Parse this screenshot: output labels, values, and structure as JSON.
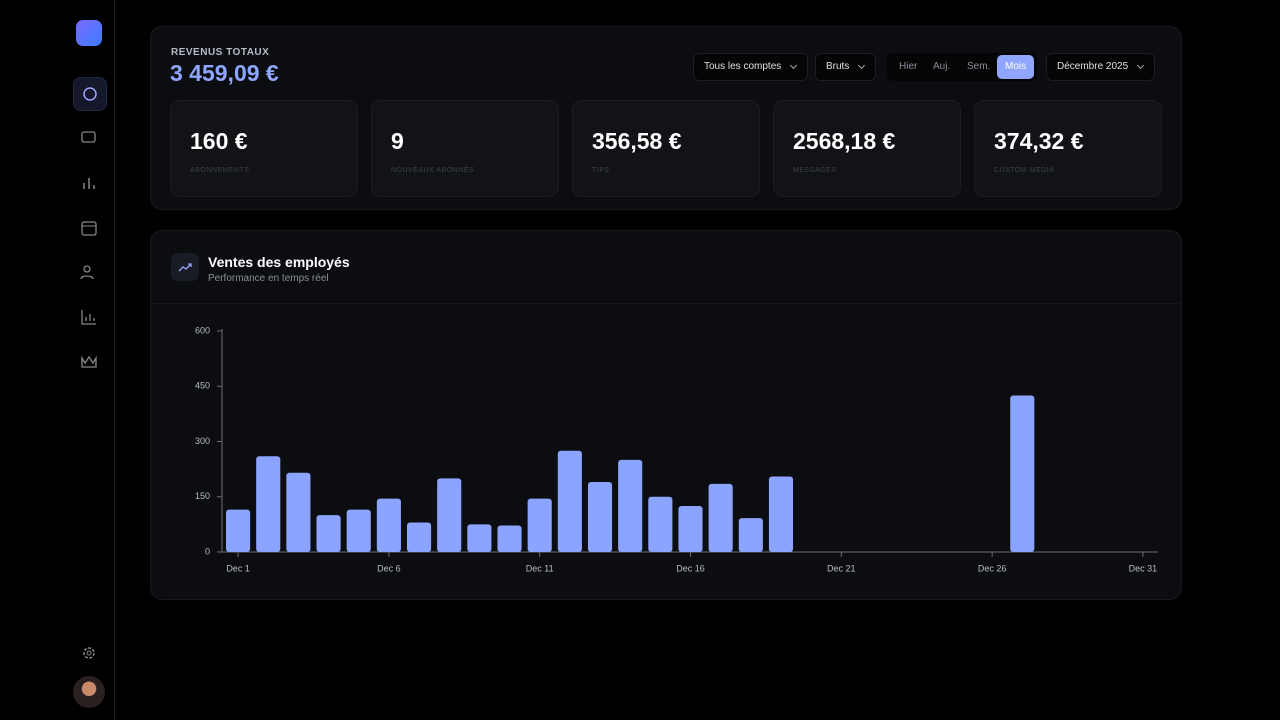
{
  "header": {
    "title": "REVENUS TOTAUX",
    "amount": "3 459,09 €",
    "filters": {
      "accounts": "Tous les comptes",
      "mode": "Bruts",
      "periods": [
        "Hier",
        "Auj.",
        "Sem.",
        "Mois"
      ],
      "active_period": "Mois",
      "month": "Décembre 2025"
    }
  },
  "stats": [
    {
      "value": "160 €",
      "label": "ABONNEMENTS"
    },
    {
      "value": "9",
      "label": "NOUVEAUX ABONNÉS"
    },
    {
      "value": "356,58 €",
      "label": "TIPS"
    },
    {
      "value": "2568,18 €",
      "label": "MESSAGES"
    },
    {
      "value": "374,32 €",
      "label": "CUSTOM MEDIA"
    }
  ],
  "section": {
    "title": "Ventes des employés",
    "subtitle": "Performance en temps réel"
  },
  "chart_data": {
    "type": "bar",
    "categories": [
      "Dec 1",
      null,
      null,
      null,
      null,
      "Dec 6",
      null,
      null,
      null,
      null,
      "Dec 11",
      null,
      null,
      null,
      null,
      "Dec 16",
      null,
      null,
      null,
      null,
      "Dec 21",
      null,
      null,
      null,
      null,
      "Dec 26",
      null,
      null,
      null,
      null,
      "Dec 31"
    ],
    "values": [
      115,
      260,
      215,
      100,
      115,
      145,
      80,
      200,
      75,
      72,
      145,
      275,
      190,
      250,
      150,
      125,
      185,
      92,
      205,
      0,
      0,
      0,
      0,
      0,
      0,
      0,
      425,
      0,
      0,
      0,
      0
    ],
    "color": "#8aa4ff",
    "ylim": [
      0,
      600
    ],
    "yticks": [
      0,
      150,
      300,
      450,
      600
    ]
  }
}
